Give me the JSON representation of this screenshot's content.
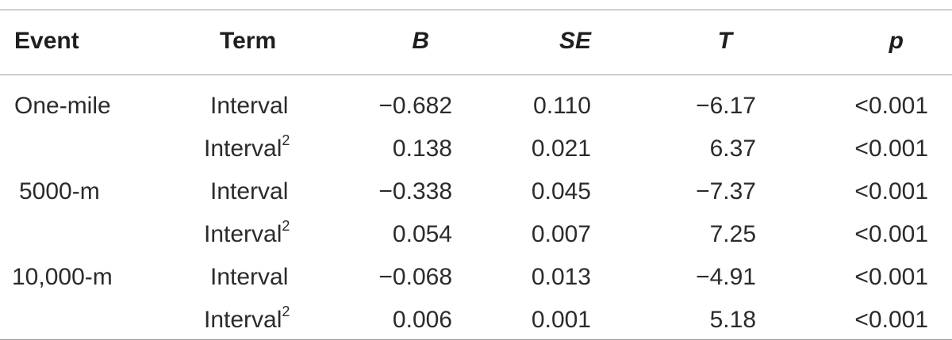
{
  "table": {
    "headers": {
      "event": "Event",
      "term": "Term",
      "b": "B",
      "se": "SE",
      "t": "T",
      "p": "p"
    },
    "rows": [
      {
        "event": "One-mile",
        "term": "Interval",
        "sup": "",
        "b": "−0.682",
        "se": "0.110",
        "t": "−6.17",
        "p": "<0.001"
      },
      {
        "event": "",
        "term": "Interval",
        "sup": "2",
        "b": "0.138",
        "se": "0.021",
        "t": "6.37",
        "p": "<0.001"
      },
      {
        "event": "5000-m",
        "term": "Interval",
        "sup": "",
        "b": "−0.338",
        "se": "0.045",
        "t": "−7.37",
        "p": "<0.001"
      },
      {
        "event": "",
        "term": "Interval",
        "sup": "2",
        "b": "0.054",
        "se": "0.007",
        "t": "7.25",
        "p": "<0.001"
      },
      {
        "event": "10,000-m",
        "term": "Interval",
        "sup": "",
        "b": "−0.068",
        "se": "0.013",
        "t": "−4.91",
        "p": "<0.001"
      },
      {
        "event": "",
        "term": "Interval",
        "sup": "2",
        "b": "0.006",
        "se": "0.001",
        "t": "5.18",
        "p": "<0.001"
      }
    ]
  }
}
